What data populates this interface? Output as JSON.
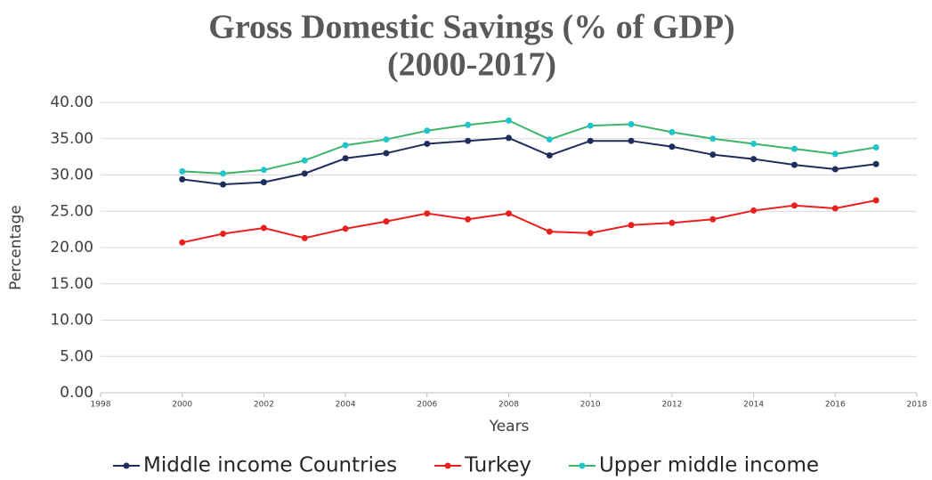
{
  "chart_data": {
    "type": "line",
    "title": "Gross Domestic Savings (% of GDP)",
    "subtitle": "(2000-2017)",
    "x_label": "Years",
    "y_label": "Percentage",
    "x": [
      2000,
      2001,
      2002,
      2003,
      2004,
      2005,
      2006,
      2007,
      2008,
      2009,
      2010,
      2011,
      2012,
      2013,
      2014,
      2015,
      2016,
      2017
    ],
    "series": [
      {
        "name": "Middle income Countries",
        "color": "#1f2d5c",
        "line_color": "#1f2d5c",
        "values": [
          29.4,
          28.7,
          29.0,
          30.2,
          32.3,
          33.0,
          34.3,
          34.7,
          35.1,
          32.7,
          34.7,
          34.7,
          33.9,
          32.8,
          32.2,
          31.4,
          30.8,
          31.5
        ]
      },
      {
        "name": "Turkey",
        "color": "#e8211f",
        "line_color": "#e8211f",
        "values": [
          20.7,
          21.9,
          22.7,
          21.3,
          22.6,
          23.6,
          24.7,
          23.9,
          24.7,
          22.2,
          22.0,
          23.1,
          23.4,
          23.9,
          25.1,
          25.8,
          25.4,
          26.5
        ]
      },
      {
        "name": "Upper middle income",
        "color": "#22c4cc",
        "line_color": "#3cb56a",
        "values": [
          30.5,
          30.2,
          30.7,
          32.0,
          34.1,
          34.9,
          36.1,
          36.9,
          37.5,
          34.9,
          36.8,
          37.0,
          35.9,
          35.0,
          34.3,
          33.6,
          32.9,
          33.8
        ]
      }
    ],
    "xlim": [
      1998,
      2018
    ],
    "xticks": [
      1998,
      2000,
      2002,
      2004,
      2006,
      2008,
      2010,
      2012,
      2014,
      2016,
      2018
    ],
    "ylim": [
      0,
      40
    ],
    "yticks": [
      {
        "value": 0,
        "label": "0.00"
      },
      {
        "value": 5,
        "label": "5.00"
      },
      {
        "value": 10,
        "label": "10.00"
      },
      {
        "value": 15,
        "label": "15.00"
      },
      {
        "value": 20,
        "label": "20.00"
      },
      {
        "value": 25,
        "label": "25.00"
      },
      {
        "value": 30,
        "label": "30.00"
      },
      {
        "value": 35,
        "label": "35.00"
      },
      {
        "value": 40,
        "label": "40.00"
      }
    ],
    "grid": true,
    "legend": "bottom"
  }
}
